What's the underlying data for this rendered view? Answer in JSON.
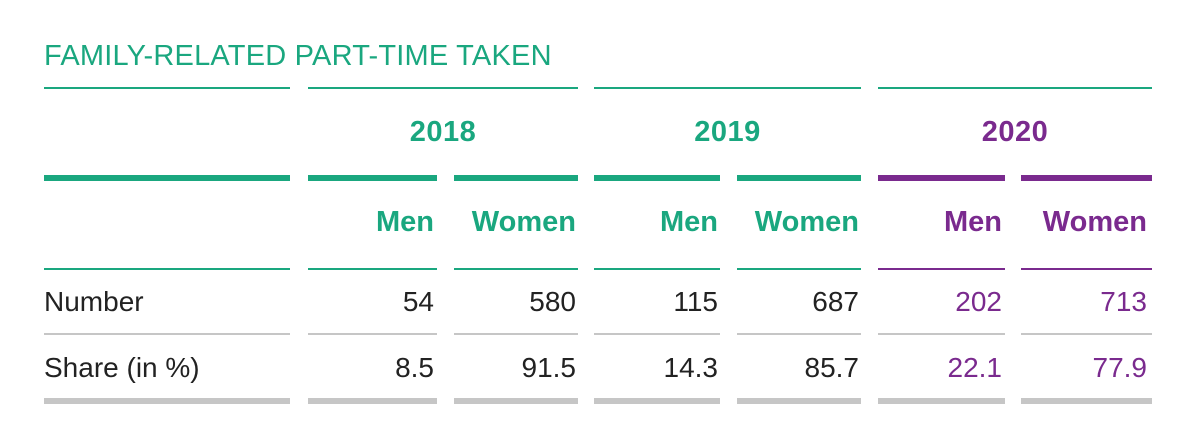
{
  "title": "FAMILY-RELATED PART-TIME TAKEN",
  "colors": {
    "green": "#1aa77f",
    "purple": "#7a2a8e",
    "gray": "#c6c6c6"
  },
  "years": [
    "2018",
    "2019",
    "2020"
  ],
  "subheaders": [
    "Men",
    "Women"
  ],
  "rows": [
    {
      "label": "Number",
      "values": [
        "54",
        "580",
        "115",
        "687",
        "202",
        "713"
      ]
    },
    {
      "label": "Share (in %)",
      "values": [
        "8.5",
        "91.5",
        "14.3",
        "85.7",
        "22.1",
        "77.9"
      ]
    }
  ]
}
